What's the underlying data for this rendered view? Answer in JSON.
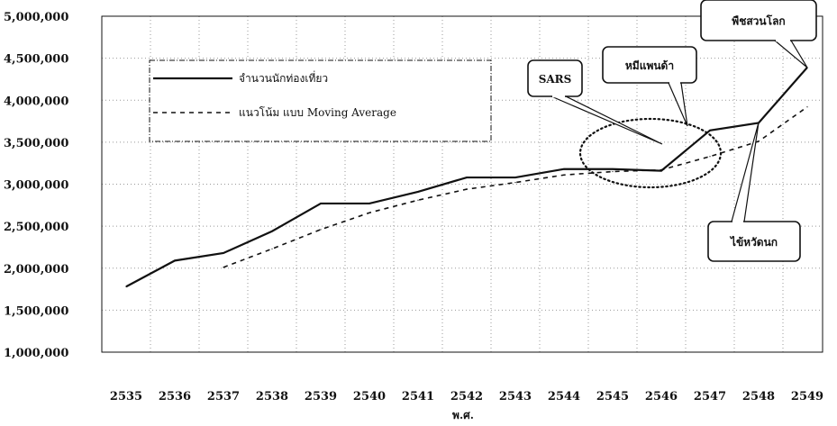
{
  "chart_data": {
    "type": "line",
    "xlabel": "พ.ศ.",
    "categories": [
      "2535",
      "2536",
      "2537",
      "2538",
      "2539",
      "2540",
      "2541",
      "2542",
      "2543",
      "2544",
      "2545",
      "2546",
      "2547",
      "2548",
      "2549"
    ],
    "y_tick_labels": [
      "5,000,000",
      "4,500,000",
      "4,000,000",
      "3,500,000",
      "3,000,000",
      "2,500,000",
      "2,000,000",
      "1,500,000",
      "1,000,000"
    ],
    "ylim": [
      1000000,
      5000000
    ],
    "grid": true,
    "legend_position": "top-left",
    "series": [
      {
        "name": "จำนวนนักท่องเที่ยว",
        "style": "solid",
        "values": [
          1780000,
          2090000,
          2180000,
          2440000,
          2770000,
          2770000,
          2910000,
          3080000,
          3080000,
          3180000,
          3180000,
          3160000,
          3640000,
          3730000,
          4390000
        ]
      },
      {
        "name": "แนวโน้ม แบบ Moving Average",
        "style": "dashed",
        "values": [
          null,
          null,
          2010000,
          2230000,
          2460000,
          2660000,
          2810000,
          2940000,
          3020000,
          3110000,
          3150000,
          3170000,
          3330000,
          3510000,
          3920000
        ]
      }
    ],
    "annotations": [
      {
        "label": "SARS",
        "x": "2546"
      },
      {
        "label": "หมีแพนด้า",
        "x": "2547"
      },
      {
        "label": "ไข้หวัดนก",
        "x": "2548"
      },
      {
        "label": "พืชสวนโลก",
        "x": "2549"
      }
    ]
  }
}
